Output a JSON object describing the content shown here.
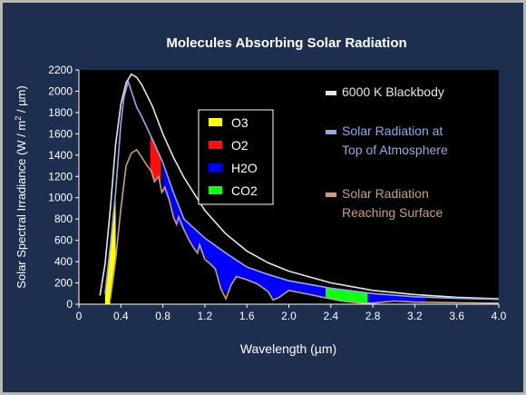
{
  "chart_data": {
    "type": "line",
    "title": "Molecules Absorbing Solar Radiation",
    "xlabel": "Wavelength (µm)",
    "ylabel": "Solar Spectral Irradiance (W / m",
    "ylabel_sup": "2",
    "ylabel_tail": " / µm)",
    "xlim": [
      0.0,
      4.0
    ],
    "ylim": [
      0,
      2200
    ],
    "xticks": [
      0,
      0.4,
      0.8,
      1.2,
      1.6,
      2.0,
      2.4,
      2.8,
      3.2,
      3.6,
      4.0
    ],
    "xtick_labels": [
      "0",
      "0.4",
      "0.8",
      "1.2",
      "1.6",
      "2.0",
      "2.4",
      "2.8",
      "3.2",
      "3.6",
      "4.0"
    ],
    "yticks": [
      0,
      200,
      400,
      600,
      800,
      1000,
      1200,
      1400,
      1600,
      1800,
      2000,
      2200
    ],
    "ytick_labels": [
      "0",
      "200",
      "400",
      "600",
      "800",
      "1000",
      "1200",
      "1400",
      "1600",
      "1800",
      "2000",
      "2200"
    ],
    "grid": false,
    "series": [
      {
        "name": "6000 K Blackbody",
        "color": "#e6e6e6",
        "x": [
          0.2,
          0.25,
          0.3,
          0.35,
          0.4,
          0.45,
          0.5,
          0.55,
          0.6,
          0.7,
          0.8,
          0.9,
          1.0,
          1.2,
          1.4,
          1.6,
          1.8,
          2.0,
          2.4,
          2.8,
          3.2,
          3.6,
          4.0
        ],
        "y": [
          80,
          380,
          900,
          1500,
          1880,
          2080,
          2160,
          2130,
          2060,
          1860,
          1600,
          1380,
          1190,
          880,
          660,
          500,
          390,
          310,
          200,
          130,
          90,
          65,
          50
        ]
      },
      {
        "name": "Solar Radiation at Top of Atmosphere",
        "color": "#8fa9f0",
        "x": [
          0.25,
          0.3,
          0.35,
          0.4,
          0.43,
          0.47,
          0.5,
          0.55,
          0.6,
          0.7,
          0.8,
          0.9,
          1.0,
          1.2,
          1.4,
          1.6,
          1.8,
          2.0,
          2.4,
          2.8,
          3.2,
          3.6,
          4.0
        ],
        "y": [
          100,
          550,
          1050,
          1700,
          1950,
          2090,
          2000,
          1850,
          1760,
          1550,
          1330,
          1050,
          800,
          620,
          480,
          350,
          280,
          220,
          150,
          100,
          70,
          55,
          45
        ]
      },
      {
        "name": "Solar Radiation Reaching Surface",
        "color": "#c9a079",
        "x": [
          0.3,
          0.35,
          0.4,
          0.45,
          0.5,
          0.55,
          0.6,
          0.65,
          0.69,
          0.72,
          0.76,
          0.79,
          0.82,
          0.86,
          0.9,
          0.93,
          0.95,
          1.0,
          1.05,
          1.1,
          1.13,
          1.15,
          1.2,
          1.25,
          1.3,
          1.35,
          1.4,
          1.45,
          1.5,
          1.6,
          1.7,
          1.8,
          1.85,
          1.9,
          2.0,
          2.1,
          2.2,
          2.3,
          2.4,
          2.5,
          2.6,
          2.7,
          2.8,
          3.0,
          3.2,
          3.5,
          4.0
        ],
        "y": [
          50,
          420,
          900,
          1300,
          1420,
          1450,
          1380,
          1300,
          1250,
          1150,
          1200,
          1050,
          1100,
          980,
          820,
          750,
          820,
          700,
          600,
          520,
          480,
          560,
          420,
          380,
          330,
          150,
          50,
          180,
          260,
          230,
          190,
          120,
          40,
          60,
          130,
          110,
          90,
          70,
          50,
          30,
          20,
          10,
          10,
          30,
          20,
          15,
          10
        ]
      }
    ],
    "absorption_bands": [
      {
        "name": "O3",
        "color": "#ffff00",
        "x0": 0.25,
        "x1": 0.35
      },
      {
        "name": "O2",
        "color": "#ff1010",
        "x0": 0.68,
        "x1": 0.78
      },
      {
        "name": "H2O",
        "color": "#0000ff",
        "x0": 0.8,
        "x1": 3.3
      },
      {
        "name": "CO2",
        "color": "#10ff10",
        "x0": 2.35,
        "x1": 2.75
      }
    ],
    "legend_molecules": [
      {
        "label": "O3",
        "color": "#ffff00"
      },
      {
        "label": "O2",
        "color": "#ff1010"
      },
      {
        "label": "H2O",
        "color": "#0000ff"
      },
      {
        "label": "CO2",
        "color": "#10ff10"
      }
    ],
    "legend_curves": [
      {
        "lines": [
          "6000 K Blackbody"
        ],
        "color": "#e6e6e6"
      },
      {
        "lines": [
          "Solar Radiation at",
          "Top of Atmosphere"
        ],
        "color": "#8fa9f0"
      },
      {
        "lines": [
          "Solar Radiation",
          "Reaching Surface"
        ],
        "color": "#c9a079"
      }
    ],
    "legend_placement": "molecules top-left inside plot; curves right inside plot"
  }
}
